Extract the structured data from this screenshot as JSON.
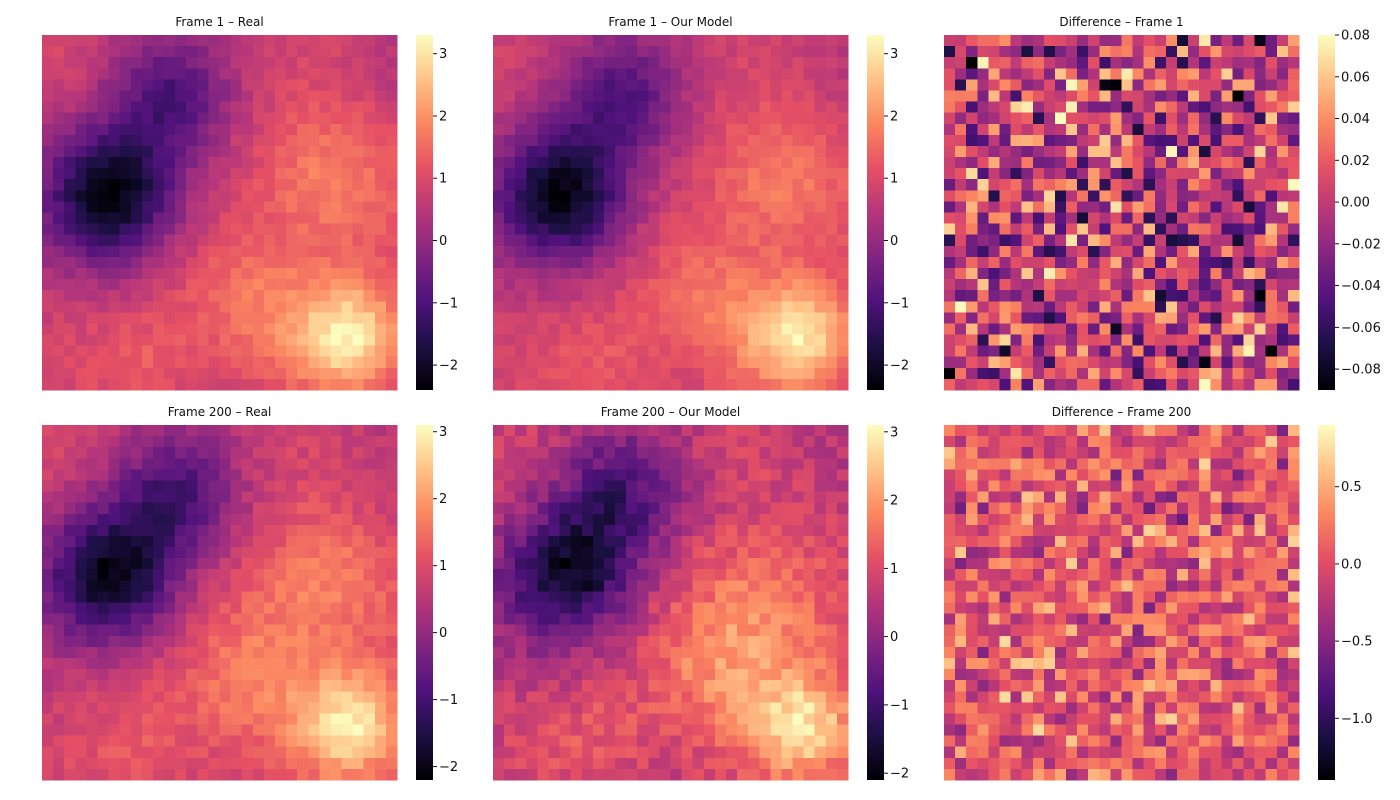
{
  "colormap": [
    "#000004",
    "#1c1044",
    "#4f127b",
    "#812581",
    "#b5367a",
    "#e55064",
    "#fb8761",
    "#fec287",
    "#fcfdbf"
  ],
  "chart_data": [
    {
      "type": "heatmap",
      "title": "Frame 1 – Real",
      "grid": [
        32,
        32
      ],
      "value_range": [
        -2.4,
        3.3
      ],
      "colorbar_ticks": [
        -2,
        -1,
        0,
        1,
        2,
        3
      ],
      "colorbar_labels": [
        "−2",
        "−1",
        "0",
        "1",
        "2",
        "3"
      ],
      "field": "smooth",
      "noise": 0.25,
      "seed": 11,
      "features": [
        {
          "u": 0.2,
          "v": 0.45,
          "amp": -3.6,
          "sig": 0.13
        },
        {
          "u": 0.36,
          "v": 0.18,
          "amp": -1.8,
          "sig": 0.12
        },
        {
          "u": 0.87,
          "v": 0.85,
          "amp": 2.9,
          "sig": 0.11
        },
        {
          "u": 0.8,
          "v": 0.42,
          "amp": 1.5,
          "sig": 0.15
        },
        {
          "u": 0.6,
          "v": 0.75,
          "amp": 1.2,
          "sig": 0.14
        },
        {
          "u": 0.3,
          "v": 0.92,
          "amp": 0.9,
          "sig": 0.12
        }
      ]
    },
    {
      "type": "heatmap",
      "title": "Frame 1 – Our Model",
      "grid": [
        32,
        32
      ],
      "value_range": [
        -2.4,
        3.3
      ],
      "colorbar_ticks": [
        -2,
        -1,
        0,
        1,
        2,
        3
      ],
      "colorbar_labels": [
        "−2",
        "−1",
        "0",
        "1",
        "2",
        "3"
      ],
      "field": "smooth",
      "noise": 0.25,
      "seed": 23,
      "features": [
        {
          "u": 0.2,
          "v": 0.45,
          "amp": -3.6,
          "sig": 0.13
        },
        {
          "u": 0.36,
          "v": 0.18,
          "amp": -1.8,
          "sig": 0.12
        },
        {
          "u": 0.87,
          "v": 0.85,
          "amp": 2.9,
          "sig": 0.11
        },
        {
          "u": 0.8,
          "v": 0.42,
          "amp": 1.5,
          "sig": 0.15
        },
        {
          "u": 0.6,
          "v": 0.75,
          "amp": 1.2,
          "sig": 0.14
        },
        {
          "u": 0.3,
          "v": 0.92,
          "amp": 0.9,
          "sig": 0.12
        }
      ]
    },
    {
      "type": "heatmap",
      "title": "Difference – Frame 1",
      "grid": [
        32,
        32
      ],
      "value_range": [
        -0.09,
        0.08
      ],
      "colorbar_ticks": [
        -0.08,
        -0.06,
        -0.04,
        -0.02,
        0.0,
        0.02,
        0.04,
        0.06,
        0.08
      ],
      "colorbar_labels": [
        "−0.08",
        "−0.06",
        "−0.04",
        "−0.02",
        "0.00",
        "0.02",
        "0.04",
        "0.06",
        "0.08"
      ],
      "field": "noise",
      "center": 0.0,
      "spread": 0.035,
      "seed": 37
    },
    {
      "type": "heatmap",
      "title": "Frame 200 – Real",
      "grid": [
        32,
        32
      ],
      "value_range": [
        -2.2,
        3.1
      ],
      "colorbar_ticks": [
        -2,
        -1,
        0,
        1,
        2,
        3
      ],
      "colorbar_labels": [
        "−2",
        "−1",
        "0",
        "1",
        "2",
        "3"
      ],
      "field": "smooth",
      "noise": 0.3,
      "seed": 41,
      "features": [
        {
          "u": 0.2,
          "v": 0.42,
          "amp": -3.4,
          "sig": 0.13
        },
        {
          "u": 0.38,
          "v": 0.2,
          "amp": -1.9,
          "sig": 0.12
        },
        {
          "u": 0.88,
          "v": 0.85,
          "amp": 2.8,
          "sig": 0.11
        },
        {
          "u": 0.78,
          "v": 0.45,
          "amp": 1.5,
          "sig": 0.15
        },
        {
          "u": 0.6,
          "v": 0.72,
          "amp": 1.3,
          "sig": 0.14
        },
        {
          "u": 0.3,
          "v": 0.9,
          "amp": 0.9,
          "sig": 0.12
        }
      ]
    },
    {
      "type": "heatmap",
      "title": "Frame 200 – Our Model",
      "grid": [
        32,
        32
      ],
      "value_range": [
        -2.1,
        3.1
      ],
      "colorbar_ticks": [
        -2,
        -1,
        0,
        1,
        2,
        3
      ],
      "colorbar_labels": [
        "−2",
        "−1",
        "0",
        "1",
        "2",
        "3"
      ],
      "field": "smooth",
      "noise": 0.45,
      "seed": 53,
      "features": [
        {
          "u": 0.22,
          "v": 0.42,
          "amp": -3.3,
          "sig": 0.13
        },
        {
          "u": 0.36,
          "v": 0.2,
          "amp": -1.8,
          "sig": 0.12
        },
        {
          "u": 0.88,
          "v": 0.85,
          "amp": 2.8,
          "sig": 0.11
        },
        {
          "u": 0.76,
          "v": 0.5,
          "amp": 1.6,
          "sig": 0.15
        },
        {
          "u": 0.62,
          "v": 0.7,
          "amp": 1.3,
          "sig": 0.14
        },
        {
          "u": 0.3,
          "v": 0.9,
          "amp": 0.9,
          "sig": 0.12
        }
      ]
    },
    {
      "type": "heatmap",
      "title": "Difference – Frame 200",
      "grid": [
        32,
        32
      ],
      "value_range": [
        -1.4,
        0.9
      ],
      "colorbar_ticks": [
        -1.0,
        -0.5,
        0.0,
        0.5
      ],
      "colorbar_labels": [
        "−1.0",
        "−0.5",
        "0.0",
        "0.5"
      ],
      "field": "noise",
      "center": 0.05,
      "spread": 0.28,
      "seed": 67
    }
  ]
}
